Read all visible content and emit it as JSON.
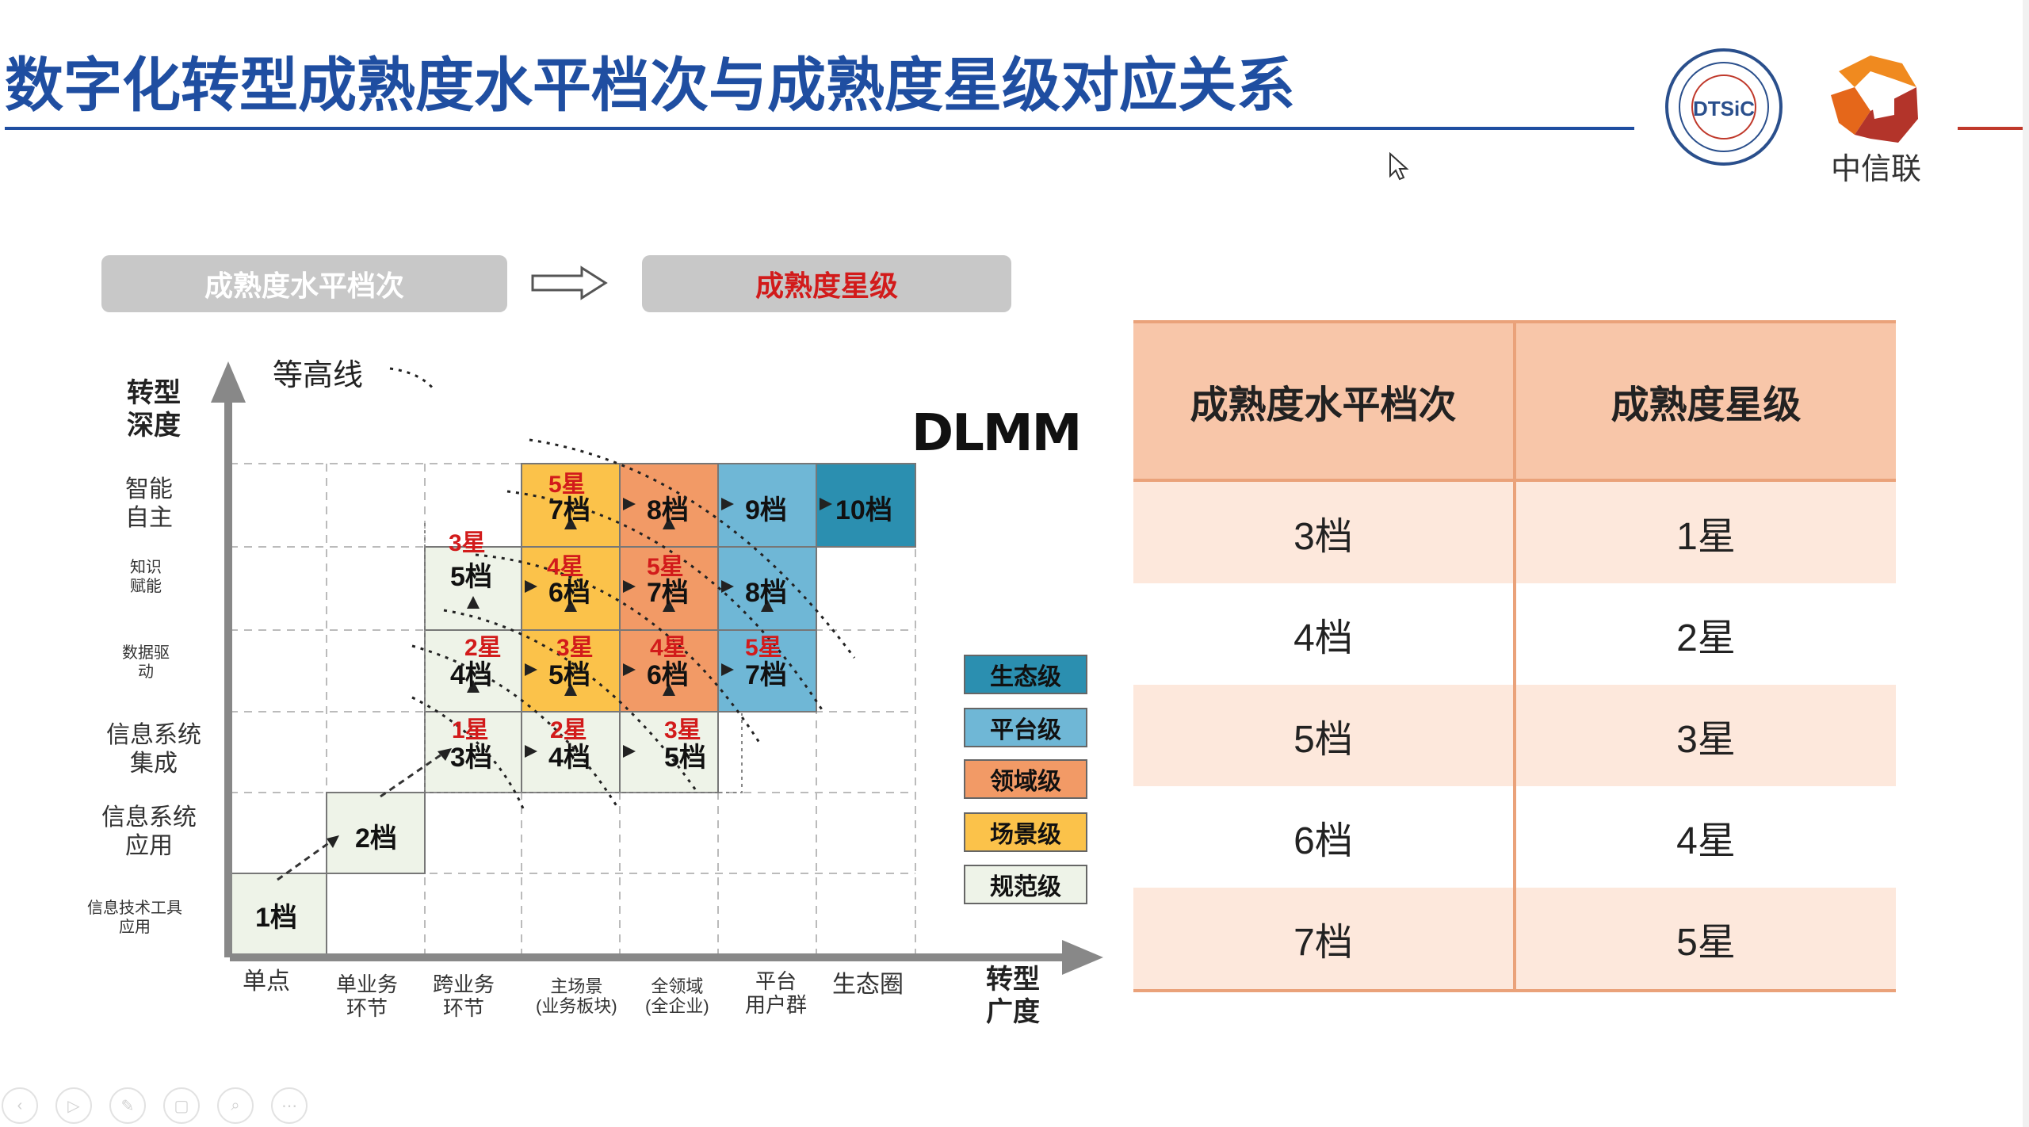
{
  "slide": {
    "title": "数字化转型成熟度水平档次与成熟度星级对应关系",
    "logo_left_text": "DTSiC",
    "logo_right_text": "中信联"
  },
  "pills": {
    "left": "成熟度水平档次",
    "right": "成熟度星级"
  },
  "chart": {
    "contour_label": "等高线",
    "dlmm_label": "DLMM",
    "y_axis_title": "转型\n深度",
    "x_axis_title": "转型\n广度",
    "y_levels": [
      "智能\n自主",
      "知识\n赋能",
      "数据驱\n动",
      "信息系统\n集成",
      "信息系统\n应用",
      "信息技术工具\n应用"
    ],
    "x_levels": [
      "单点",
      "单业务\n环节",
      "跨业务\n环节",
      "主场景\n(业务板块)",
      "全领域\n(全企业)",
      "平台\n用户群",
      "生态圈"
    ],
    "cells": [
      "1档",
      "2档",
      "3档",
      "4档",
      "5档",
      "4档",
      "5档",
      "6档",
      "7档",
      "5档",
      "6档",
      "7档",
      "8档",
      "7档",
      "8档",
      "9档",
      "10档"
    ],
    "stars": [
      "1星",
      "2星",
      "3星",
      "2星",
      "3星",
      "4星",
      "5星",
      "3星",
      "4星",
      "5星",
      "5星"
    ],
    "legend": [
      "生态级",
      "平台级",
      "领域级",
      "场景级",
      "规范级"
    ],
    "legend_colors": [
      "#2b8fb0",
      "#6fb7d6",
      "#f29a66",
      "#fbc24a",
      "#eef3e8"
    ]
  },
  "table": {
    "headers": [
      "成熟度水平档次",
      "成熟度星级"
    ],
    "rows": [
      [
        "3档",
        "1星"
      ],
      [
        "4档",
        "2星"
      ],
      [
        "5档",
        "3星"
      ],
      [
        "6档",
        "4星"
      ],
      [
        "7档",
        "5星"
      ]
    ]
  },
  "toolbar": [
    "‹",
    "▷",
    "✎",
    "▢",
    "⌕",
    "⋯"
  ]
}
